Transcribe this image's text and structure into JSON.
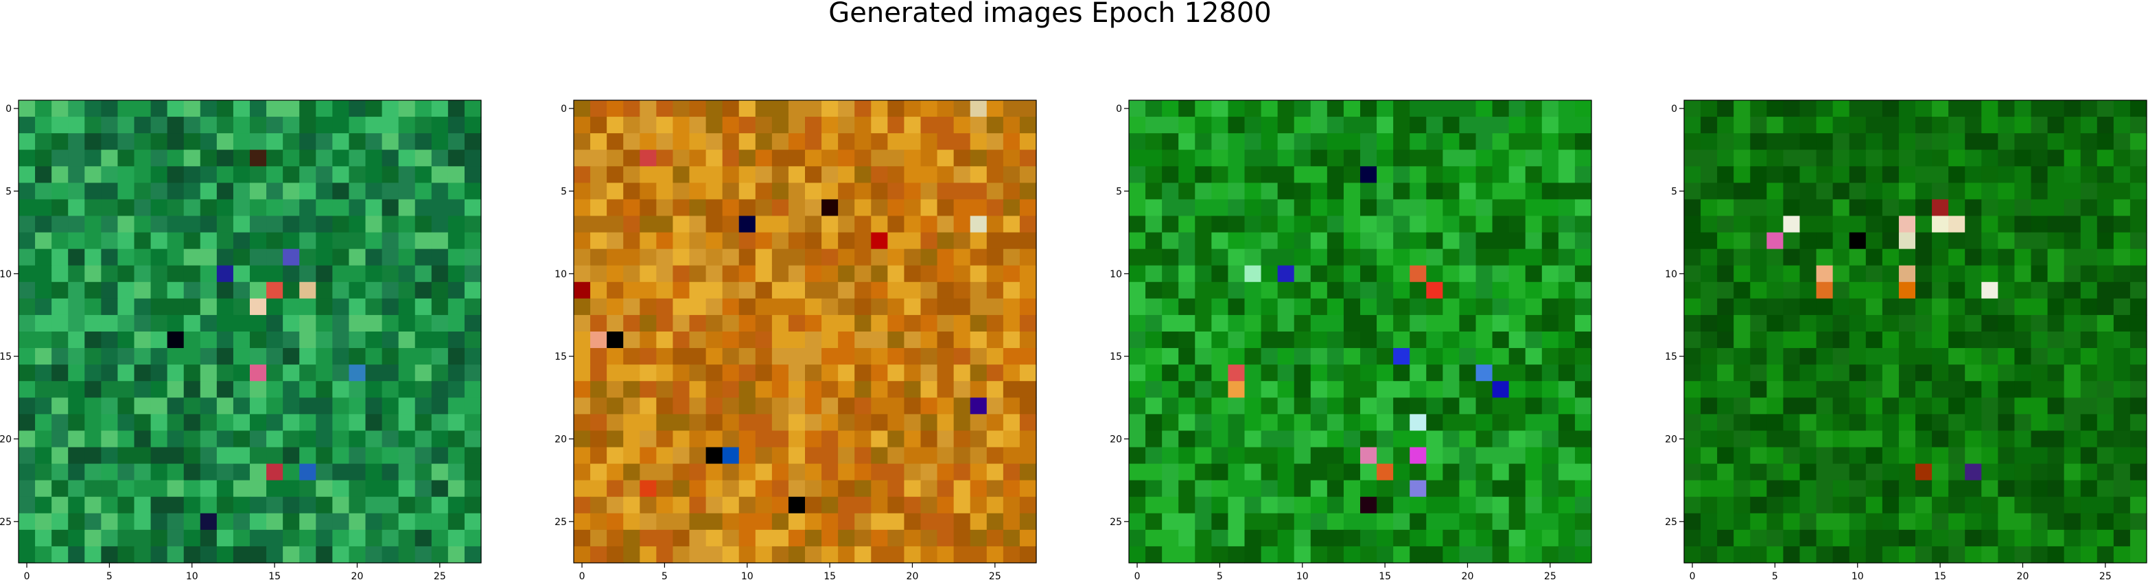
{
  "chart_data": {
    "type": "heatmap",
    "title": "Generated images Epoch 12800",
    "grid": false,
    "image_shape": [
      28,
      28,
      3
    ],
    "x_tick_labels": [
      "0",
      "5",
      "10",
      "15",
      "20",
      "25"
    ],
    "y_tick_labels": [
      "0",
      "5",
      "10",
      "15",
      "20",
      "25"
    ],
    "xlim": [
      -0.5,
      27.5
    ],
    "ylim": [
      27.5,
      -0.5
    ],
    "panels": [
      {
        "name": "image-1",
        "palette": [
          "#0b6b2a",
          "#13803a",
          "#1a9646",
          "#0f5f3a",
          "#2aa35a",
          "#3bbf6b",
          "#0d4f2c",
          "#1f7f4f",
          "#55c46f",
          "#127042",
          "#23a653",
          "#087a33"
        ],
        "accents": [
          {
            "row": 10,
            "col": 12,
            "color": "#1e1e9a"
          },
          {
            "row": 11,
            "col": 15,
            "color": "#e05040"
          },
          {
            "row": 12,
            "col": 14,
            "color": "#f0d0b0"
          },
          {
            "row": 11,
            "col": 17,
            "color": "#e0c090"
          },
          {
            "row": 16,
            "col": 14,
            "color": "#e06090"
          },
          {
            "row": 16,
            "col": 20,
            "color": "#3080c0"
          },
          {
            "row": 22,
            "col": 15,
            "color": "#c03040"
          },
          {
            "row": 22,
            "col": 17,
            "color": "#2060c0"
          },
          {
            "row": 25,
            "col": 11,
            "color": "#101040"
          },
          {
            "row": 3,
            "col": 14,
            "color": "#402010"
          },
          {
            "row": 9,
            "col": 16,
            "color": "#5050c0"
          },
          {
            "row": 14,
            "col": 9,
            "color": "#000010"
          }
        ]
      },
      {
        "name": "image-2",
        "palette": [
          "#c8780a",
          "#d88a10",
          "#b86408",
          "#e0a020",
          "#a85a05",
          "#c06010",
          "#d49a30",
          "#b07010",
          "#e8b030",
          "#9a6a08",
          "#c88a20",
          "#d07008"
        ],
        "accents": [
          {
            "row": 3,
            "col": 4,
            "color": "#d04040"
          },
          {
            "row": 6,
            "col": 15,
            "color": "#200000"
          },
          {
            "row": 7,
            "col": 10,
            "color": "#000040"
          },
          {
            "row": 7,
            "col": 24,
            "color": "#e0e0c0"
          },
          {
            "row": 8,
            "col": 18,
            "color": "#c00000"
          },
          {
            "row": 11,
            "col": 0,
            "color": "#a00000"
          },
          {
            "row": 14,
            "col": 1,
            "color": "#f0a080"
          },
          {
            "row": 14,
            "col": 2,
            "color": "#000000"
          },
          {
            "row": 18,
            "col": 24,
            "color": "#300090"
          },
          {
            "row": 21,
            "col": 9,
            "color": "#0050c0"
          },
          {
            "row": 21,
            "col": 8,
            "color": "#000000"
          },
          {
            "row": 24,
            "col": 13,
            "color": "#000000"
          },
          {
            "row": 23,
            "col": 4,
            "color": "#e04010"
          },
          {
            "row": 0,
            "col": 24,
            "color": "#e0d0a0"
          }
        ]
      },
      {
        "name": "image-3",
        "palette": [
          "#0a8a10",
          "#10a018",
          "#0c7a0c",
          "#20b028",
          "#0a6a08",
          "#18902a",
          "#30c040",
          "#086008",
          "#14a020",
          "#0e8018",
          "#28b038",
          "#065a06"
        ],
        "accents": [
          {
            "row": 4,
            "col": 14,
            "color": "#000040"
          },
          {
            "row": 10,
            "col": 9,
            "color": "#2020c0"
          },
          {
            "row": 10,
            "col": 7,
            "color": "#a0f0c0"
          },
          {
            "row": 10,
            "col": 17,
            "color": "#e06030"
          },
          {
            "row": 11,
            "col": 18,
            "color": "#f03020"
          },
          {
            "row": 15,
            "col": 16,
            "color": "#2030e0"
          },
          {
            "row": 16,
            "col": 6,
            "color": "#e05050"
          },
          {
            "row": 17,
            "col": 6,
            "color": "#f0a040"
          },
          {
            "row": 16,
            "col": 21,
            "color": "#4080e0"
          },
          {
            "row": 17,
            "col": 22,
            "color": "#1010c0"
          },
          {
            "row": 19,
            "col": 17,
            "color": "#c0f0f0"
          },
          {
            "row": 21,
            "col": 14,
            "color": "#e080b0"
          },
          {
            "row": 22,
            "col": 15,
            "color": "#e06020"
          },
          {
            "row": 21,
            "col": 17,
            "color": "#e040e0"
          },
          {
            "row": 23,
            "col": 17,
            "color": "#8080e0"
          },
          {
            "row": 24,
            "col": 14,
            "color": "#200010"
          }
        ]
      },
      {
        "name": "image-4",
        "palette": [
          "#0a6a08",
          "#0c7a0c",
          "#085808",
          "#10900e",
          "#064a06",
          "#0e8010",
          "#147014",
          "#035003",
          "#1a9a18",
          "#086c0a",
          "#0a5c0a",
          "#127812"
        ],
        "accents": [
          {
            "row": 8,
            "col": 5,
            "color": "#e060b0"
          },
          {
            "row": 7,
            "col": 6,
            "color": "#f0f0e0"
          },
          {
            "row": 7,
            "col": 13,
            "color": "#f0c0b0"
          },
          {
            "row": 7,
            "col": 15,
            "color": "#f0f0d0"
          },
          {
            "row": 6,
            "col": 15,
            "color": "#a02020"
          },
          {
            "row": 7,
            "col": 16,
            "color": "#f0e0c0"
          },
          {
            "row": 8,
            "col": 13,
            "color": "#e0e0c0"
          },
          {
            "row": 10,
            "col": 8,
            "color": "#f0b080"
          },
          {
            "row": 11,
            "col": 8,
            "color": "#e07020"
          },
          {
            "row": 10,
            "col": 13,
            "color": "#e0b080"
          },
          {
            "row": 11,
            "col": 13,
            "color": "#e07000"
          },
          {
            "row": 11,
            "col": 18,
            "color": "#f0f0e0"
          },
          {
            "row": 22,
            "col": 14,
            "color": "#a03000"
          },
          {
            "row": 22,
            "col": 17,
            "color": "#402080"
          },
          {
            "row": 8,
            "col": 10,
            "color": "#000000"
          }
        ]
      }
    ]
  }
}
